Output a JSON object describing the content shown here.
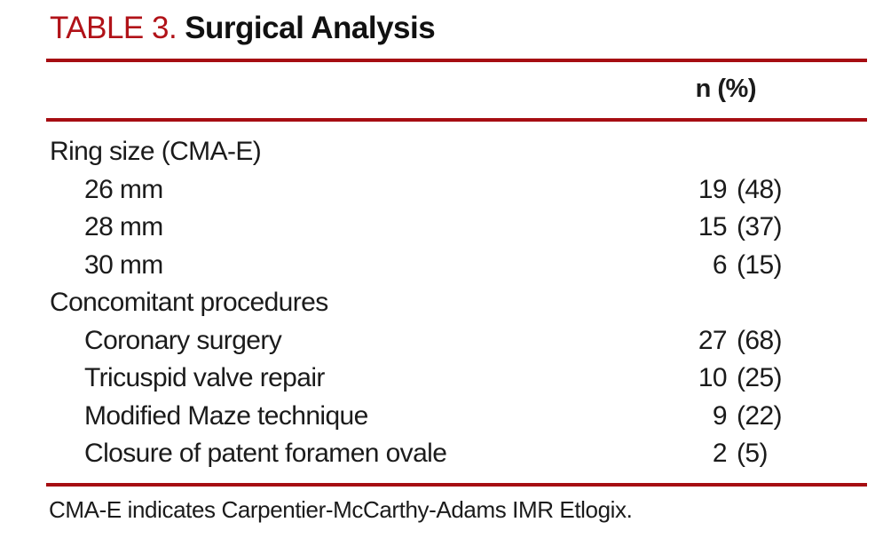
{
  "table": {
    "label": "TABLE 3.",
    "title": "Surgical Analysis",
    "column_header": "n (%)",
    "rows": [
      {
        "label": "Ring size (CMA-E)",
        "indent": 0,
        "n": "",
        "pct": ""
      },
      {
        "label": "26 mm",
        "indent": 1,
        "n": "19",
        "pct": "(48)"
      },
      {
        "label": "28 mm",
        "indent": 1,
        "n": "15",
        "pct": "(37)"
      },
      {
        "label": "30 mm",
        "indent": 1,
        "n": "6",
        "pct": "(15)"
      },
      {
        "label": "Concomitant procedures",
        "indent": 0,
        "n": "",
        "pct": ""
      },
      {
        "label": "Coronary surgery",
        "indent": 1,
        "n": "27",
        "pct": "(68)"
      },
      {
        "label": "Tricuspid valve repair",
        "indent": 1,
        "n": "10",
        "pct": "(25)"
      },
      {
        "label": "Modified Maze technique",
        "indent": 1,
        "n": "9",
        "pct": "(22)"
      },
      {
        "label": "Closure of patent foramen ovale",
        "indent": 1,
        "n": "2",
        "pct": "(5)"
      }
    ],
    "footnote": "CMA-E indicates Carpentier-McCarthy-Adams IMR Etlogix."
  },
  "colors": {
    "title_red": "#B11218",
    "rule_red": "#A60D12"
  }
}
